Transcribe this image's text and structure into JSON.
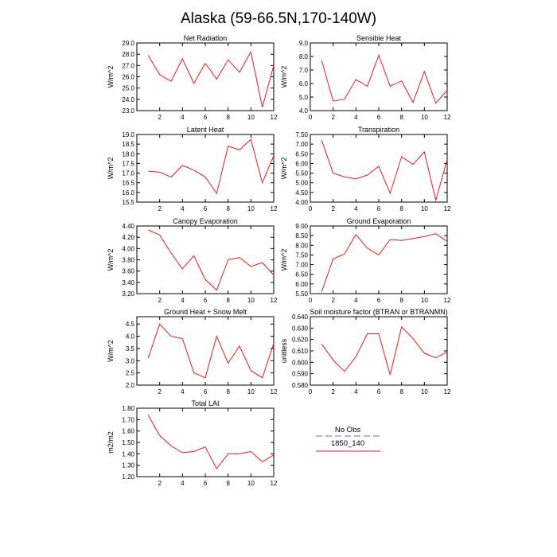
{
  "title": "Alaska (59-66.5N,170-140W)",
  "colors": {
    "model": "#e8191f",
    "obs": "#9b9be6",
    "axis": "#000000"
  },
  "legend": {
    "entries": [
      {
        "label": "No Obs",
        "color": "#9b9be6",
        "style": "dashed"
      },
      {
        "label": "1850_140",
        "color": "#e8191f",
        "style": "solid"
      }
    ]
  },
  "chart_data": [
    {
      "type": "line",
      "title": "Net Radiation",
      "ylabel": "W/m^2",
      "x": [
        1,
        2,
        3,
        4,
        5,
        6,
        7,
        8,
        9,
        10,
        11,
        12
      ],
      "xlim": [
        0,
        12
      ],
      "xticks": [
        "2",
        "4",
        "6",
        "8",
        "10",
        "12"
      ],
      "ylim": [
        23.0,
        29.0
      ],
      "yticks": [
        "23.0",
        "24.0",
        "25.0",
        "26.0",
        "27.0",
        "28.0",
        "29.0"
      ],
      "series": [
        {
          "values": [
            27.9,
            26.2,
            25.6,
            27.6,
            25.4,
            27.2,
            25.8,
            27.5,
            26.4,
            28.2,
            23.3,
            27.0
          ]
        }
      ]
    },
    {
      "type": "line",
      "title": "Sensible Heat",
      "ylabel": "W/m^2",
      "x": [
        1,
        2,
        3,
        4,
        5,
        6,
        7,
        8,
        9,
        10,
        11,
        12
      ],
      "xlim": [
        0,
        12
      ],
      "xticks": [
        "0",
        "2",
        "4",
        "6",
        "8",
        "10",
        "12"
      ],
      "ylim": [
        4.0,
        9.0
      ],
      "yticks": [
        "4.0",
        "5.0",
        "6.0",
        "7.0",
        "8.0",
        "9.0"
      ],
      "series": [
        {
          "values": [
            7.7,
            4.7,
            4.85,
            6.3,
            5.8,
            8.1,
            5.8,
            6.2,
            4.6,
            6.9,
            4.55,
            5.5
          ]
        }
      ]
    },
    {
      "type": "line",
      "title": "Latent Heat",
      "ylabel": "W/m^2",
      "x": [
        1,
        2,
        3,
        4,
        5,
        6,
        7,
        8,
        9,
        10,
        11,
        12
      ],
      "xlim": [
        0,
        12
      ],
      "xticks": [
        "2",
        "4",
        "6",
        "8",
        "10",
        "12"
      ],
      "ylim": [
        15.5,
        19.0
      ],
      "yticks": [
        "15.5",
        "16.0",
        "16.5",
        "17.0",
        "17.5",
        "18.0",
        "18.5",
        "19.0"
      ],
      "series": [
        {
          "values": [
            17.1,
            17.05,
            16.8,
            17.4,
            17.15,
            16.8,
            15.95,
            18.4,
            18.2,
            18.75,
            16.5,
            17.9
          ]
        }
      ]
    },
    {
      "type": "line",
      "title": "Transpiration",
      "ylabel": "W/m^2",
      "x": [
        1,
        2,
        3,
        4,
        5,
        6,
        7,
        8,
        9,
        10,
        11,
        12
      ],
      "xlim": [
        0,
        12
      ],
      "xticks": [
        "0",
        "2",
        "4",
        "6",
        "8",
        "10",
        "12"
      ],
      "ylim": [
        4.0,
        7.5
      ],
      "yticks": [
        "4.00",
        "4.50",
        "5.00",
        "5.50",
        "6.00",
        "6.50",
        "7.00",
        "7.50"
      ],
      "series": [
        {
          "values": [
            7.2,
            5.5,
            5.3,
            5.2,
            5.4,
            5.85,
            4.45,
            6.35,
            5.95,
            6.6,
            4.1,
            6.2
          ]
        }
      ]
    },
    {
      "type": "line",
      "title": "Canopy Evaporation",
      "ylabel": "W/m^2",
      "x": [
        1,
        2,
        3,
        4,
        5,
        6,
        7,
        8,
        9,
        10,
        11,
        12
      ],
      "xlim": [
        0,
        12
      ],
      "xticks": [
        "2",
        "4",
        "6",
        "8",
        "10",
        "12"
      ],
      "ylim": [
        3.2,
        4.4
      ],
      "yticks": [
        "3.20",
        "3.40",
        "3.60",
        "3.80",
        "4.00",
        "4.20",
        "4.40"
      ],
      "series": [
        {
          "values": [
            4.33,
            4.24,
            3.92,
            3.64,
            3.87,
            3.45,
            3.26,
            3.8,
            3.84,
            3.68,
            3.75,
            3.53
          ]
        }
      ]
    },
    {
      "type": "line",
      "title": "Ground Evaporation",
      "ylabel": "W/m^2",
      "x": [
        1,
        2,
        3,
        4,
        5,
        6,
        7,
        8,
        9,
        10,
        11,
        12
      ],
      "xlim": [
        0,
        12
      ],
      "xticks": [
        "0",
        "2",
        "4",
        "6",
        "8",
        "10",
        "12"
      ],
      "ylim": [
        5.5,
        9.0
      ],
      "yticks": [
        "5.50",
        "6.00",
        "6.50",
        "7.00",
        "7.50",
        "8.00",
        "8.50",
        "9.00"
      ],
      "series": [
        {
          "values": [
            5.6,
            7.3,
            7.55,
            8.55,
            7.85,
            7.5,
            8.3,
            8.25,
            8.35,
            8.45,
            8.6,
            8.2
          ]
        }
      ]
    },
    {
      "type": "line",
      "title": "Ground Heat + Snow Melt",
      "ylabel": "W/m^2",
      "x": [
        1,
        2,
        3,
        4,
        5,
        6,
        7,
        8,
        9,
        10,
        11,
        12
      ],
      "xlim": [
        0,
        12
      ],
      "xticks": [
        "2",
        "4",
        "6",
        "8",
        "10",
        "12"
      ],
      "ylim": [
        2.0,
        4.8
      ],
      "yticks": [
        "2.0",
        "2.5",
        "3.0",
        "3.5",
        "4.0",
        "4.5"
      ],
      "series": [
        {
          "values": [
            3.1,
            4.5,
            4.0,
            3.9,
            2.5,
            2.3,
            4.0,
            2.9,
            3.6,
            2.6,
            2.3,
            3.7
          ]
        }
      ]
    },
    {
      "type": "line",
      "title": "Soil moisture factor (BTRAN or BTRANMN)",
      "ylabel": "unitless",
      "x": [
        1,
        2,
        3,
        4,
        5,
        6,
        7,
        8,
        9,
        10,
        11,
        12
      ],
      "xlim": [
        0,
        12
      ],
      "xticks": [
        "0",
        "2",
        "4",
        "6",
        "8",
        "10",
        "12"
      ],
      "ylim": [
        0.58,
        0.64
      ],
      "yticks": [
        "0.580",
        "0.590",
        "0.600",
        "0.610",
        "0.620",
        "0.630",
        "0.640"
      ],
      "series": [
        {
          "values": [
            0.616,
            0.602,
            0.592,
            0.605,
            0.625,
            0.625,
            0.589,
            0.631,
            0.621,
            0.608,
            0.604,
            0.609
          ]
        }
      ]
    },
    {
      "type": "line",
      "title": "Total LAI",
      "ylabel": "m2/m2",
      "x": [
        1,
        2,
        3,
        4,
        5,
        6,
        7,
        8,
        9,
        10,
        11,
        12
      ],
      "xlim": [
        0,
        12
      ],
      "xticks": [
        "2",
        "4",
        "6",
        "8",
        "10",
        "12"
      ],
      "ylim": [
        1.2,
        1.8
      ],
      "yticks": [
        "1.20",
        "1.30",
        "1.40",
        "1.50",
        "1.60",
        "1.70",
        "1.80"
      ],
      "series": [
        {
          "values": [
            1.74,
            1.56,
            1.47,
            1.41,
            1.42,
            1.46,
            1.27,
            1.4,
            1.4,
            1.42,
            1.33,
            1.39
          ]
        }
      ]
    }
  ]
}
